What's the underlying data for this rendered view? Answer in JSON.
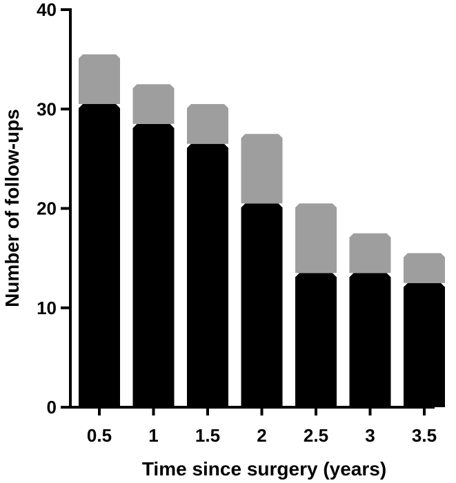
{
  "chart_data": {
    "type": "bar",
    "stacked": true,
    "categories": [
      "0.5",
      "1",
      "1.5",
      "2",
      "2.5",
      "3",
      "3.5"
    ],
    "series": [
      {
        "values": [
          30.5,
          28.5,
          26.5,
          20.5,
          13.5,
          13.5,
          12.5
        ],
        "color": "#000000"
      },
      {
        "values": [
          5,
          4,
          4,
          7,
          7,
          4,
          3
        ],
        "color": "#9e9e9e"
      }
    ],
    "totals": [
      35.5,
      32.5,
      30.5,
      27.5,
      20.5,
      17.5,
      15.5
    ],
    "xlabel": "Time since surgery (years)",
    "ylabel": "Number of follow-ups",
    "ylim": [
      0,
      40
    ],
    "yticks": [
      "0",
      "10",
      "20",
      "30",
      "40"
    ],
    "grid": false,
    "legend": "none"
  }
}
